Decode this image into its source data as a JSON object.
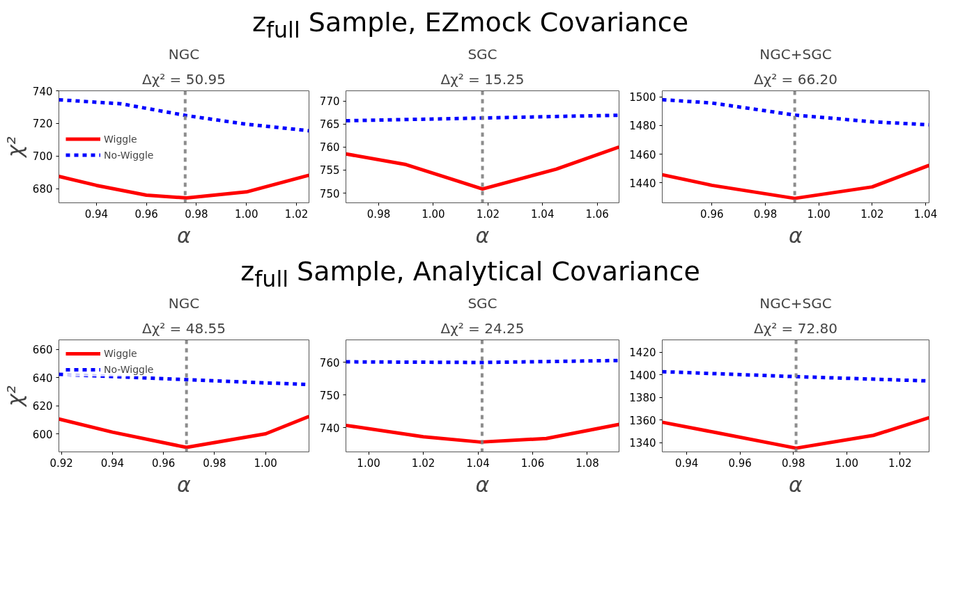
{
  "chart_data": [
    {
      "type": "line",
      "annotations": [
        "z$_{full}$ Sample, EZmock Covariance"
      ],
      "title": "NGC",
      "subtitle": "Δχ² = 50.95",
      "xlabel": "α",
      "ylabel": "χ²",
      "xlim": [
        0.925,
        1.025
      ],
      "xticks": [
        {
          "value": 0.94,
          "label": "0.94"
        },
        {
          "value": 0.96,
          "label": "0.96"
        },
        {
          "value": 0.98,
          "label": "0.98"
        },
        {
          "value": 1.0,
          "label": "1.00"
        },
        {
          "value": 1.02,
          "label": "1.02"
        }
      ],
      "ylim": [
        671.3,
        740
      ],
      "yticks": [
        680,
        700,
        720,
        740
      ],
      "grid": false,
      "legend": "left",
      "ref_lines": [
        {
          "axis": "x",
          "value": 0.9755,
          "color": "#808080",
          "line_style": "dashed"
        }
      ],
      "series": [
        {
          "name": "Wiggle",
          "color": "#ff0000",
          "line_style": "solid",
          "x": [
            0.925,
            0.94,
            0.96,
            0.976,
            1.0,
            1.025
          ],
          "values": [
            687.5,
            682,
            676,
            674.3,
            678,
            688.2
          ]
        },
        {
          "name": "No-Wiggle",
          "color": "#0000ff",
          "line_style": "dashed",
          "x": [
            0.925,
            0.95,
            0.976,
            1.0,
            1.025
          ],
          "values": [
            734.5,
            732,
            724.8,
            719.5,
            715.5
          ]
        }
      ]
    },
    {
      "type": "line",
      "title": "SGC",
      "subtitle": "Δχ² = 15.25",
      "xlabel": "α",
      "xlim": [
        0.968,
        1.068
      ],
      "xticks": [
        {
          "value": 0.98,
          "label": "0.98"
        },
        {
          "value": 1.0,
          "label": "1.00"
        },
        {
          "value": 1.02,
          "label": "1.02"
        },
        {
          "value": 1.04,
          "label": "1.04"
        },
        {
          "value": 1.06,
          "label": "1.06"
        }
      ],
      "ylim": [
        747.9,
        772.2
      ],
      "yticks": [
        750,
        755,
        760,
        765,
        770
      ],
      "grid": false,
      "ref_lines": [
        {
          "axis": "x",
          "value": 1.018,
          "color": "#808080",
          "line_style": "dashed"
        }
      ],
      "series": [
        {
          "color": "#ff0000",
          "line_style": "solid",
          "x": [
            0.968,
            0.99,
            1.018,
            1.045,
            1.068
          ],
          "values": [
            758.5,
            756.2,
            750.9,
            755.2,
            760.0
          ]
        },
        {
          "color": "#0000ff",
          "line_style": "dashed",
          "x": [
            0.968,
            1.018,
            1.068
          ],
          "values": [
            765.7,
            766.3,
            766.9
          ]
        }
      ]
    },
    {
      "type": "line",
      "title": "NGC+SGC",
      "subtitle": "Δχ² = 66.20",
      "xlabel": "α",
      "xlim": [
        0.9414,
        1.0413
      ],
      "xticks": [
        {
          "value": 0.96,
          "label": "0.96"
        },
        {
          "value": 0.98,
          "label": "0.98"
        },
        {
          "value": 1.0,
          "label": "1.00"
        },
        {
          "value": 1.02,
          "label": "1.02"
        },
        {
          "value": 1.04,
          "label": "1.04"
        }
      ],
      "ylim": [
        1426.1,
        1504.2
      ],
      "yticks": [
        1440,
        1460,
        1480,
        1500
      ],
      "grid": false,
      "ref_lines": [
        {
          "axis": "x",
          "value": 0.991,
          "color": "#808080",
          "line_style": "dashed"
        }
      ],
      "series": [
        {
          "color": "#ff0000",
          "line_style": "solid",
          "x": [
            0.9414,
            0.96,
            0.991,
            1.02,
            1.0413
          ],
          "values": [
            1445.7,
            1438.3,
            1429.2,
            1437.2,
            1452.2
          ]
        },
        {
          "color": "#0000ff",
          "line_style": "dashed",
          "x": [
            0.9414,
            0.96,
            0.991,
            1.02,
            1.0413
          ],
          "values": [
            1498,
            1495.7,
            1487.3,
            1482.6,
            1480.5
          ]
        }
      ]
    },
    {
      "type": "line",
      "annotations": [
        "z$_{full}$ Sample, Analytical Covariance"
      ],
      "title": "NGC",
      "subtitle": "Δχ² = 48.55",
      "xlabel": "α",
      "ylabel": "χ²",
      "xlim": [
        0.919,
        1.017
      ],
      "xticks": [
        {
          "value": 0.92,
          "label": "0.92"
        },
        {
          "value": 0.94,
          "label": "0.94"
        },
        {
          "value": 0.96,
          "label": "0.96"
        },
        {
          "value": 0.98,
          "label": "0.98"
        },
        {
          "value": 1.0,
          "label": "1.00"
        }
      ],
      "ylim": [
        587.4,
        666.8
      ],
      "yticks": [
        600,
        620,
        640,
        660
      ],
      "grid": false,
      "legend": "top left",
      "ref_lines": [
        {
          "axis": "x",
          "value": 0.969,
          "color": "#808080",
          "line_style": "dashed"
        }
      ],
      "series": [
        {
          "name": "Wiggle",
          "color": "#ff0000",
          "line_style": "solid",
          "x": [
            0.919,
            0.94,
            0.969,
            1.0,
            1.017
          ],
          "values": [
            610.7,
            601.4,
            590.6,
            600.2,
            612.5
          ]
        },
        {
          "name": "No-Wiggle",
          "color": "#0000ff",
          "line_style": "dashed",
          "x": [
            0.919,
            0.969,
            1.017
          ],
          "values": [
            642.4,
            638.6,
            635.1
          ]
        }
      ]
    },
    {
      "type": "line",
      "title": "SGC",
      "subtitle": "Δχ² = 24.25",
      "xlabel": "α",
      "xlim": [
        0.9917,
        1.0916
      ],
      "xticks": [
        {
          "value": 1.0,
          "label": "1.00"
        },
        {
          "value": 1.02,
          "label": "1.02"
        },
        {
          "value": 1.04,
          "label": "1.04"
        },
        {
          "value": 1.06,
          "label": "1.06"
        },
        {
          "value": 1.08,
          "label": "1.08"
        }
      ],
      "ylim": [
        732.6,
        766.8
      ],
      "yticks": [
        740,
        750,
        760
      ],
      "grid": false,
      "ref_lines": [
        {
          "axis": "x",
          "value": 1.0415,
          "color": "#808080",
          "line_style": "dashed"
        }
      ],
      "series": [
        {
          "color": "#ff0000",
          "line_style": "solid",
          "x": [
            0.9917,
            1.02,
            1.041,
            1.065,
            1.0916
          ],
          "values": [
            740.7,
            737.2,
            735.6,
            736.7,
            741.0
          ]
        },
        {
          "color": "#0000ff",
          "line_style": "dashed",
          "x": [
            0.9917,
            1.041,
            1.0916
          ],
          "values": [
            760.1,
            759.9,
            760.5
          ]
        }
      ]
    },
    {
      "type": "line",
      "title": "NGC+SGC",
      "subtitle": "Δχ² = 72.80",
      "xlabel": "α",
      "xlim": [
        0.9308,
        1.0309
      ],
      "xticks": [
        {
          "value": 0.94,
          "label": "0.94"
        },
        {
          "value": 0.96,
          "label": "0.96"
        },
        {
          "value": 0.98,
          "label": "0.98"
        },
        {
          "value": 1.0,
          "label": "1.00"
        },
        {
          "value": 1.02,
          "label": "1.02"
        }
      ],
      "ylim": [
        1331.9,
        1430.9
      ],
      "yticks": [
        1340,
        1360,
        1380,
        1400,
        1420
      ],
      "grid": false,
      "ref_lines": [
        {
          "axis": "x",
          "value": 0.981,
          "color": "#808080",
          "line_style": "dashed"
        }
      ],
      "series": [
        {
          "color": "#ff0000",
          "line_style": "solid",
          "x": [
            0.9308,
            0.95,
            0.981,
            1.01,
            1.0309
          ],
          "values": [
            1358.1,
            1349.4,
            1335.2,
            1346.5,
            1362.1
          ]
        },
        {
          "color": "#0000ff",
          "line_style": "dashed",
          "x": [
            0.9308,
            0.981,
            1.0309
          ],
          "values": [
            1402.8,
            1398.4,
            1394.6
          ]
        }
      ]
    }
  ]
}
